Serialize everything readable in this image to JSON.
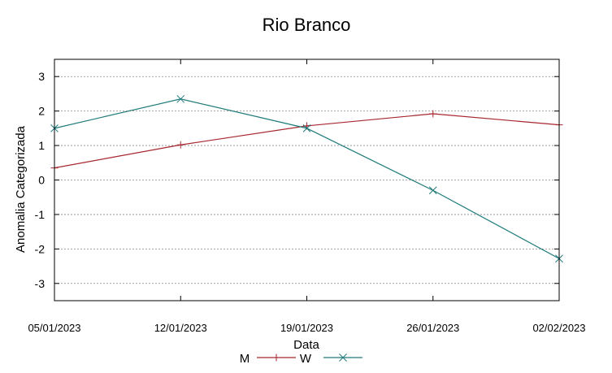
{
  "chart_data": {
    "type": "line",
    "title": "Rio Branco",
    "xlabel": "Data",
    "ylabel": "Anomalia Categorizada",
    "categories": [
      "05/01/2023",
      "12/01/2023",
      "19/01/2023",
      "26/01/2023",
      "02/02/2023"
    ],
    "ylim": [
      -3.5,
      3.5
    ],
    "yticks": [
      -3,
      -2,
      -1,
      0,
      1,
      2,
      3
    ],
    "grid": "horizontal dashed",
    "legend_position": "bottom",
    "series": [
      {
        "name": "M",
        "values": [
          0.35,
          1.02,
          1.57,
          1.92,
          1.6
        ],
        "color": "#a8262f",
        "marker": "plus"
      },
      {
        "name": "W",
        "values": [
          1.5,
          2.35,
          1.5,
          -0.3,
          -2.28
        ],
        "color": "#1f7a7a",
        "marker": "cross"
      }
    ]
  }
}
